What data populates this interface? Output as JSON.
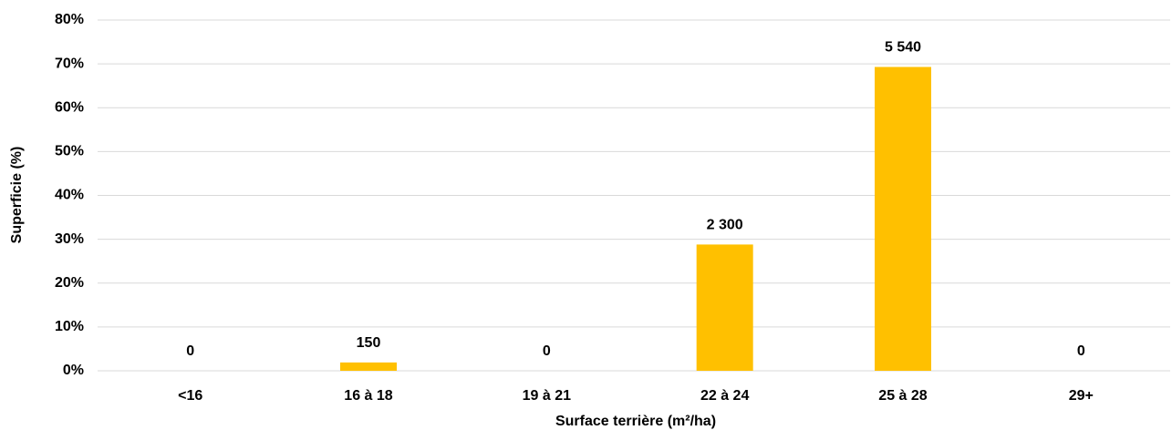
{
  "chart_data": {
    "type": "bar",
    "x_label": "Surface terrière (m²/ha)",
    "y_label": "Superficie (%)",
    "categories": [
      "<16",
      "16 à 18",
      "19 à 21",
      "22 à 24",
      "25 à 28",
      "29+"
    ],
    "values": [
      0,
      1.9,
      0,
      28.8,
      69.3,
      0
    ],
    "bar_labels": [
      0,
      150,
      0,
      {
        "value": 2300,
        "label": "2 300"
      },
      {
        "value": 5540,
        "label": "5 540"
      },
      0
    ],
    "color": "#ffc000",
    "ylim": [
      0,
      80
    ],
    "yticks": [
      {
        "value": 0,
        "label": "0%"
      },
      {
        "value": 10,
        "label": "10%"
      },
      {
        "value": 20,
        "label": "20%"
      },
      {
        "value": 30,
        "label": "30%"
      },
      {
        "value": 40,
        "label": "40%"
      },
      {
        "value": 50,
        "label": "50%"
      },
      {
        "value": 60,
        "label": "60%"
      },
      {
        "value": 70,
        "label": "70%"
      },
      {
        "value": 80,
        "label": "80%"
      }
    ],
    "grid": true
  }
}
